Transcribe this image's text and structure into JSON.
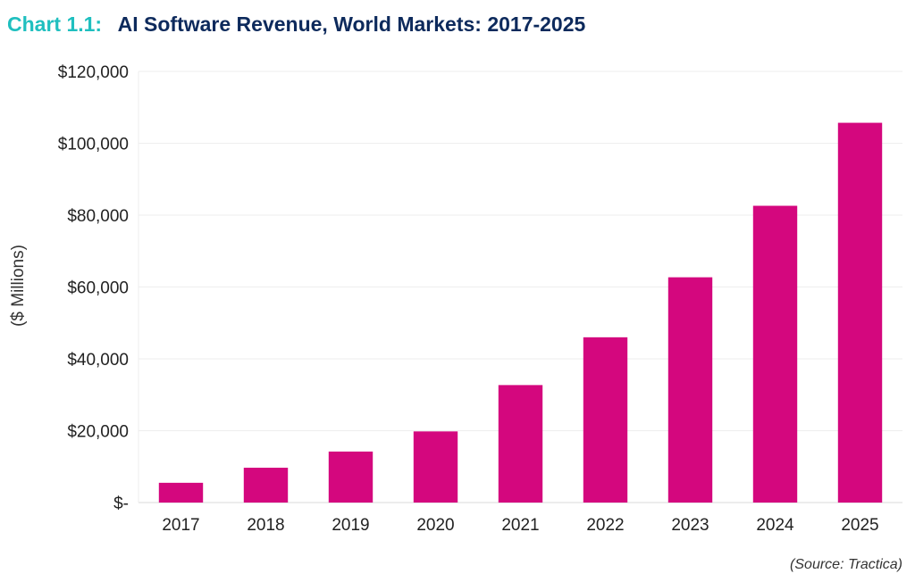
{
  "header": {
    "chart_number": "Chart 1.1:",
    "title": "AI Software Revenue, World Markets: 2017-2025"
  },
  "source": "(Source: Tractica)",
  "colors": {
    "bar": "#d4077e",
    "chart_number": "#1fbfbf",
    "title": "#0d2a5c"
  },
  "chart_data": {
    "type": "bar",
    "title": "AI Software Revenue, World Markets: 2017-2025",
    "xlabel": "",
    "ylabel": "($ Millions)",
    "categories": [
      "2017",
      "2018",
      "2019",
      "2020",
      "2021",
      "2022",
      "2023",
      "2024",
      "2025"
    ],
    "values": [
      5500,
      9700,
      14200,
      19800,
      32700,
      46000,
      62700,
      82600,
      105700
    ],
    "ylim": [
      0,
      120000
    ],
    "yticks": [
      0,
      20000,
      40000,
      60000,
      80000,
      100000,
      120000
    ],
    "ytick_labels": [
      "$-",
      "$20,000",
      "$40,000",
      "$60,000",
      "$80,000",
      "$100,000",
      "$120,000"
    ],
    "grid": true,
    "legend": "none"
  }
}
